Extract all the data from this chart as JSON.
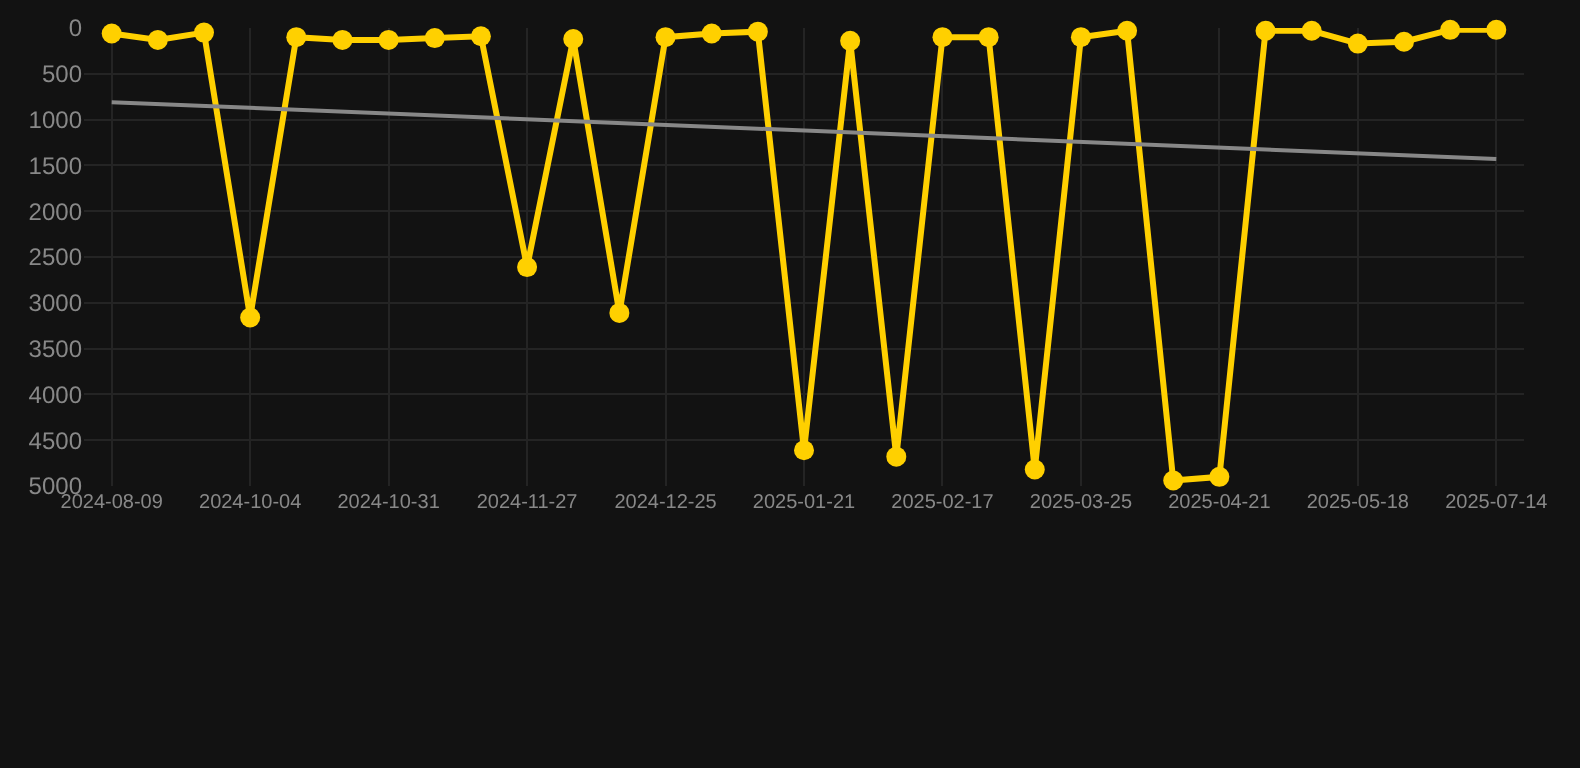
{
  "chart_data": {
    "type": "line",
    "categories": [
      "2024-08-09",
      null,
      null,
      "2024-10-04",
      null,
      null,
      "2024-10-31",
      null,
      null,
      "2024-11-27",
      null,
      null,
      "2024-12-25",
      null,
      null,
      "2025-01-21",
      null,
      null,
      "2025-02-17",
      null,
      null,
      "2025-03-25",
      null,
      null,
      "2025-04-21",
      null,
      null,
      "2025-05-18",
      null,
      null,
      "2025-07-14"
    ],
    "series": [
      {
        "color": "#ffd000",
        "marker": "circle",
        "values": [
          60,
          130,
          50,
          3160,
          100,
          130,
          130,
          110,
          90,
          2610,
          120,
          3110,
          100,
          60,
          40,
          4610,
          140,
          4680,
          100,
          100,
          4820,
          100,
          30,
          4940,
          4900,
          30,
          30,
          170,
          150,
          20,
          20
        ]
      },
      {
        "color": "#888888",
        "marker": "none",
        "values": [
          810,
          null,
          null,
          null,
          null,
          null,
          null,
          null,
          null,
          null,
          null,
          null,
          null,
          null,
          null,
          null,
          null,
          null,
          null,
          null,
          null,
          null,
          null,
          null,
          null,
          null,
          null,
          null,
          null,
          null,
          1430
        ]
      }
    ],
    "ylim": [
      5000,
      0
    ],
    "yticks": [
      0,
      500,
      1000,
      1500,
      2000,
      2500,
      3000,
      3500,
      4000,
      4500,
      5000
    ],
    "grid": true
  }
}
